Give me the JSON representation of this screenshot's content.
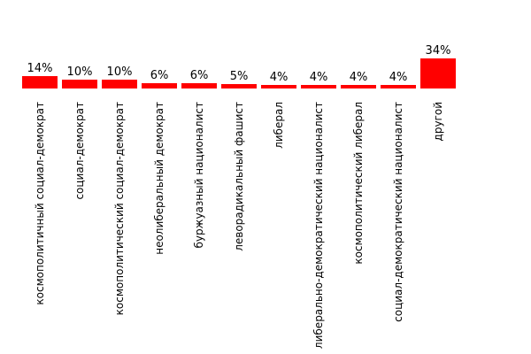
{
  "chart_data": {
    "type": "bar",
    "categories": [
      "космополитичный социал-демократ",
      "социал-демократ",
      "космополитический социал-демократ",
      "неолиберальный демократ",
      "буржуазный националист",
      "леворадикальный фашист",
      "либерал",
      "либерально-демократический националист",
      "космополитический либерал",
      "социал-демократический националист",
      "другой"
    ],
    "values": [
      14,
      10,
      10,
      6,
      6,
      5,
      4,
      4,
      4,
      4,
      34
    ],
    "value_labels": [
      "14%",
      "10%",
      "10%",
      "6%",
      "6%",
      "5%",
      "4%",
      "4%",
      "4%",
      "4%",
      "34%"
    ],
    "color": "#ff0000"
  }
}
